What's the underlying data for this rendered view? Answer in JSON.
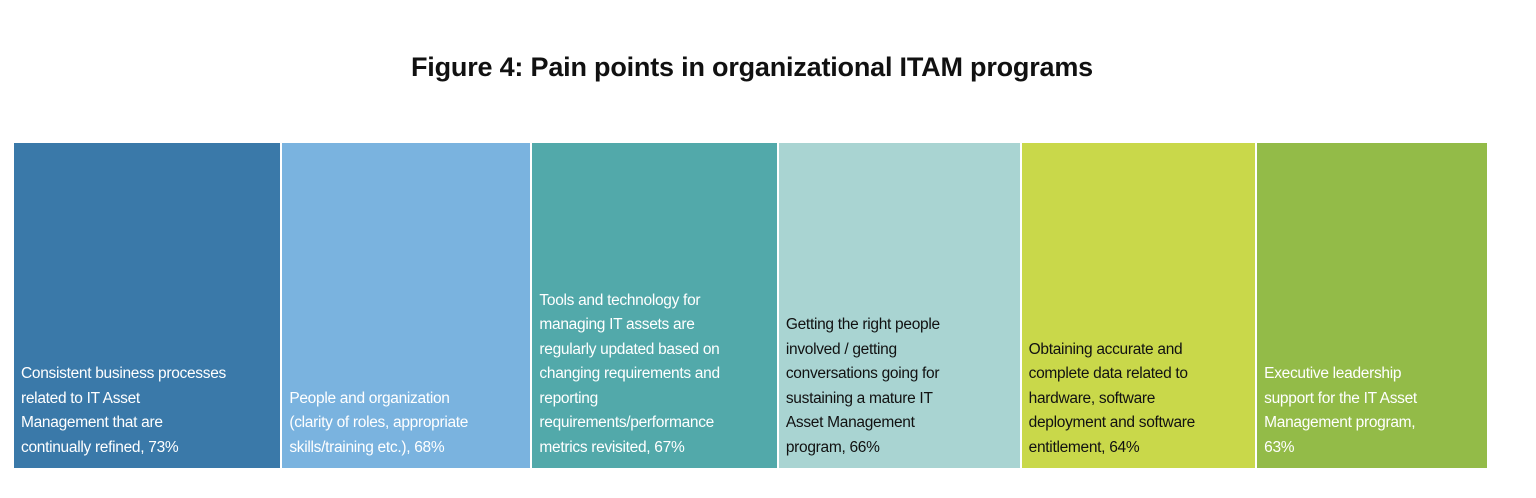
{
  "chart_data": {
    "type": "bar",
    "title": "Figure 4: Pain points in organizational ITAM programs",
    "categories": [
      "Consistent business processes\nrelated to IT Asset\nManagement that are\ncontinually refined, 73%",
      "People and organization\n(clarity of roles, appropriate\nskills/training etc.), 68%",
      "Tools and technology for\nmanaging IT assets are\nregularly updated based on\nchanging requirements and\nreporting\nrequirements/performance\nmetrics revisited, 67%",
      "Getting the right people\ninvolved / getting\nconversations going for\nsustaining a mature IT\nAsset Management\nprogram, 66%",
      "Obtaining accurate and\ncomplete data related to\nhardware, software\ndeployment and software\nentitlement, 64%",
      "Executive leadership\nsupport for the IT Asset\nManagement program,\n63%"
    ],
    "values": [
      73,
      68,
      67,
      66,
      64,
      63
    ],
    "unit": "%",
    "colors": [
      "#3a79a9",
      "#7ab3df",
      "#52a9aa",
      "#a9d4d2",
      "#c9d84a",
      "#93bb48"
    ],
    "text_colors": [
      "#ffffff",
      "#ffffff",
      "#ffffff",
      "#111111",
      "#111111",
      "#ffffff"
    ],
    "layout": "proportional-width blocks",
    "grid": false
  }
}
